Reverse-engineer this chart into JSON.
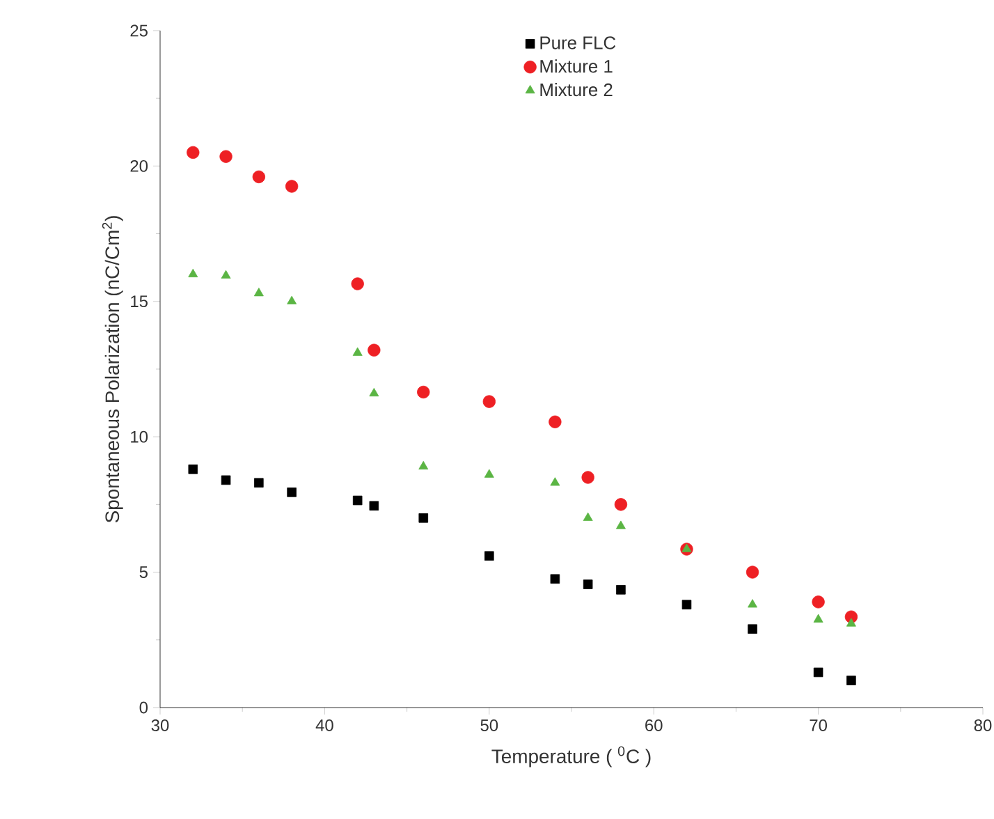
{
  "chart_data": {
    "type": "scatter",
    "xlabel": "Temperature ( $^{0}$C )",
    "ylabel": "Spontaneous Polarization (nC/Cm$^{2}$)",
    "x": [
      32,
      34,
      36,
      38,
      42,
      43,
      46,
      50,
      54,
      56,
      58,
      62,
      66,
      70,
      72
    ],
    "series": [
      {
        "name": "Pure FLC",
        "color": "#000000",
        "marker": "square",
        "values": [
          8.8,
          8.4,
          8.3,
          7.95,
          7.65,
          7.45,
          7.0,
          5.6,
          4.75,
          4.55,
          4.35,
          3.8,
          2.9,
          1.3,
          1.0
        ]
      },
      {
        "name": "Mixture 1",
        "color": "#ee2024",
        "marker": "circle",
        "values": [
          20.5,
          20.35,
          19.6,
          19.25,
          15.65,
          13.2,
          11.65,
          11.3,
          10.55,
          8.5,
          7.5,
          5.85,
          5.0,
          3.9,
          3.35
        ]
      },
      {
        "name": "Mixture 2",
        "color": "#5bb544",
        "marker": "triangle",
        "values": [
          16.0,
          15.95,
          15.3,
          15.0,
          13.1,
          11.6,
          8.9,
          8.6,
          8.3,
          7.0,
          6.7,
          5.85,
          3.8,
          3.25,
          3.1
        ]
      }
    ],
    "xlim": [
      30,
      80
    ],
    "ylim": [
      0,
      25
    ],
    "xticks": [
      30,
      40,
      50,
      60,
      70,
      80
    ],
    "yticks": [
      0,
      5,
      10,
      15,
      20,
      25
    ],
    "grid": false,
    "legend": "top"
  }
}
